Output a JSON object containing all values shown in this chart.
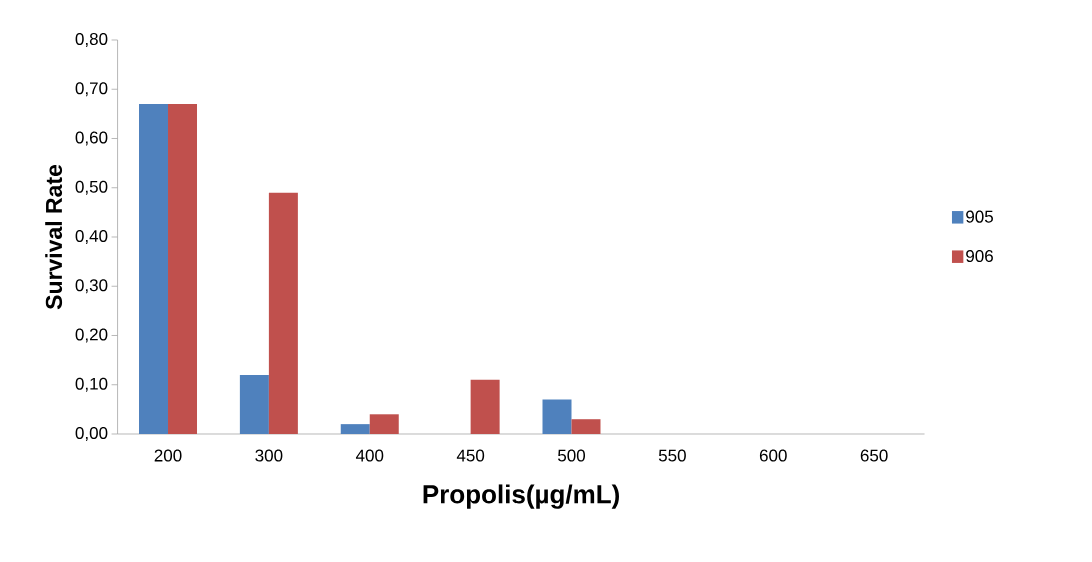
{
  "chart_data": {
    "type": "bar",
    "xlabel": "Propolis(µg/mL)",
    "ylabel": "Survival Rate",
    "categories": [
      "200",
      "300",
      "400",
      "450",
      "500",
      "550",
      "600",
      "650"
    ],
    "series": [
      {
        "name": "905",
        "color": "#4f81bd",
        "values": [
          0.67,
          0.12,
          0.02,
          0,
          0.07,
          0,
          0,
          0
        ]
      },
      {
        "name": "906",
        "color": "#c0504d",
        "values": [
          0.67,
          0.49,
          0.04,
          0.11,
          0.03,
          0,
          0,
          0
        ]
      }
    ],
    "ylim": [
      0,
      0.8
    ],
    "yticks": [
      {
        "value": 0,
        "label": "0,00"
      },
      {
        "value": 0.1,
        "label": "0,10"
      },
      {
        "value": 0.2,
        "label": "0,20"
      },
      {
        "value": 0.3,
        "label": "0,30"
      },
      {
        "value": 0.4,
        "label": "0,40"
      },
      {
        "value": 0.5,
        "label": "0,50"
      },
      {
        "value": 0.6,
        "label": "0,60"
      },
      {
        "value": 0.7,
        "label": "0,70"
      },
      {
        "value": 0.8,
        "label": "0,80"
      }
    ],
    "legend": "right"
  }
}
